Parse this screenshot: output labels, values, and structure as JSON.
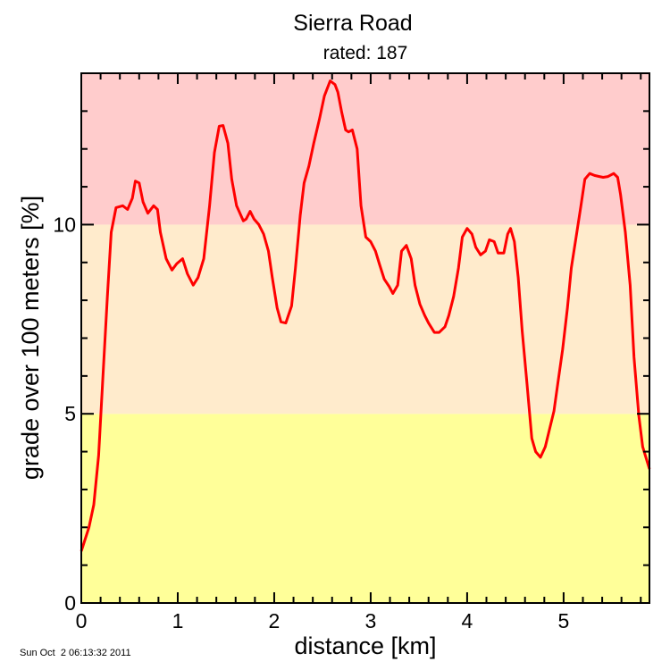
{
  "chart_data": {
    "type": "line",
    "title": "Sierra Road",
    "subtitle": "rated: 187",
    "xlabel": "distance [km]",
    "ylabel": "grade over 100 meters [%]",
    "timestamp": "Sun Oct  2 06:13:32 2011",
    "xlim": [
      0,
      5.89
    ],
    "ylim": [
      0,
      14
    ],
    "x_ticks": [
      "0",
      "1",
      "2",
      "3",
      "4",
      "5"
    ],
    "y_ticks": [
      "0",
      "5",
      "10"
    ],
    "grid": false,
    "bands": [
      {
        "from": 0,
        "to": 5,
        "color": "#ffff99"
      },
      {
        "from": 5,
        "to": 10,
        "color": "#ffebcc"
      },
      {
        "from": 10,
        "to": 14,
        "color": "#ffcccc"
      }
    ],
    "line_color": "#ff0000",
    "series": [
      {
        "x": [
          0,
          0.08,
          0.13,
          0.18,
          0.22,
          0.27,
          0.31,
          0.36,
          0.43,
          0.48,
          0.53,
          0.56,
          0.6,
          0.64,
          0.69,
          0.75,
          0.79,
          0.82,
          0.88,
          0.94,
          0.99,
          1.05,
          1.1,
          1.16,
          1.21,
          1.27,
          1.33,
          1.38,
          1.43,
          1.47,
          1.52,
          1.56,
          1.61,
          1.68,
          1.71,
          1.75,
          1.79,
          1.84,
          1.89,
          1.94,
          1.98,
          2.03,
          2.07,
          2.12,
          2.18,
          2.22,
          2.27,
          2.31,
          2.36,
          2.41,
          2.47,
          2.52,
          2.58,
          2.63,
          2.66,
          2.7,
          2.74,
          2.77,
          2.81,
          2.86,
          2.9,
          2.95,
          3.0,
          3.05,
          3.09,
          3.14,
          3.19,
          3.23,
          3.28,
          3.32,
          3.37,
          3.42,
          3.46,
          3.51,
          3.56,
          3.6,
          3.66,
          3.71,
          3.77,
          3.81,
          3.86,
          3.91,
          3.95,
          4.0,
          4.05,
          4.09,
          4.14,
          4.19,
          4.23,
          4.28,
          4.32,
          4.38,
          4.42,
          4.45,
          4.49,
          4.53,
          4.57,
          4.62,
          4.67,
          4.71,
          4.76,
          4.81,
          4.85,
          4.9,
          4.94,
          4.99,
          5.04,
          5.08,
          5.13,
          5.18,
          5.22,
          5.27,
          5.32,
          5.37,
          5.41,
          5.46,
          5.52,
          5.56,
          5.59,
          5.64,
          5.69,
          5.73,
          5.78,
          5.82,
          5.89
        ],
        "y": [
          1.37,
          2.0,
          2.6,
          3.9,
          5.8,
          8.1,
          9.8,
          10.45,
          10.5,
          10.4,
          10.7,
          11.15,
          11.1,
          10.6,
          10.3,
          10.5,
          10.4,
          9.8,
          9.1,
          8.8,
          8.97,
          9.1,
          8.7,
          8.4,
          8.6,
          9.1,
          10.5,
          11.9,
          12.6,
          12.62,
          12.15,
          11.2,
          10.5,
          10.1,
          10.15,
          10.35,
          10.15,
          10.0,
          9.75,
          9.3,
          8.6,
          7.8,
          7.43,
          7.4,
          7.85,
          8.85,
          10.25,
          11.1,
          11.55,
          12.15,
          12.8,
          13.4,
          13.8,
          13.7,
          13.5,
          12.97,
          12.5,
          12.45,
          12.5,
          12.0,
          10.5,
          9.67,
          9.55,
          9.3,
          8.96,
          8.56,
          8.37,
          8.18,
          8.4,
          9.3,
          9.45,
          9.1,
          8.4,
          7.9,
          7.6,
          7.4,
          7.15,
          7.15,
          7.3,
          7.6,
          8.1,
          8.85,
          9.67,
          9.9,
          9.75,
          9.4,
          9.2,
          9.3,
          9.6,
          9.55,
          9.25,
          9.25,
          9.75,
          9.9,
          9.55,
          8.6,
          7.2,
          5.8,
          4.35,
          4.0,
          3.85,
          4.13,
          4.55,
          5.07,
          5.8,
          6.7,
          7.8,
          8.85,
          9.67,
          10.5,
          11.2,
          11.35,
          11.3,
          11.27,
          11.25,
          11.27,
          11.35,
          11.25,
          10.8,
          9.8,
          8.4,
          6.5,
          4.95,
          4.13,
          3.54
        ]
      }
    ]
  }
}
